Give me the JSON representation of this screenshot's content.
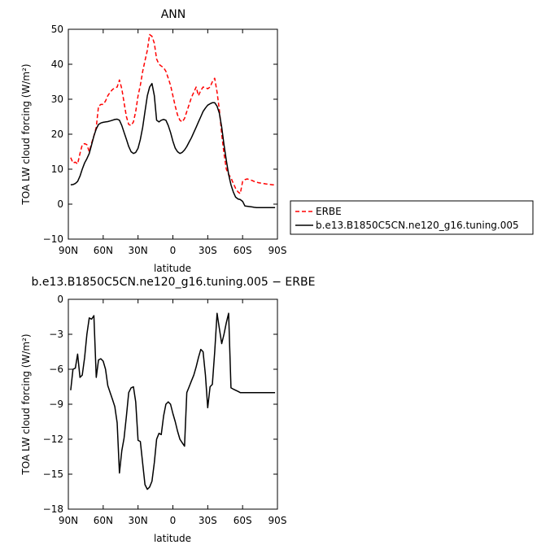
{
  "chart_data": [
    {
      "type": "line",
      "title": "ANN",
      "xlabel": "latitude",
      "ylabel": "TOA LW cloud forcing (W/m²)",
      "x_ticks": [
        {
          "v": 90,
          "label": "90N"
        },
        {
          "v": 60,
          "label": "60N"
        },
        {
          "v": 30,
          "label": "30N"
        },
        {
          "v": 0,
          "label": "0"
        },
        {
          "v": -30,
          "label": "30S"
        },
        {
          "v": -60,
          "label": "60S"
        },
        {
          "v": -90,
          "label": "90S"
        }
      ],
      "xlim": [
        90,
        -90
      ],
      "ylim": [
        -10,
        50
      ],
      "y_ticks": [
        -10,
        0,
        10,
        20,
        30,
        40,
        50
      ],
      "legend_placement": "right",
      "series": [
        {
          "name": "ERBE",
          "color": "#ff0000",
          "dash": "dashed",
          "x": [
            88,
            86,
            84,
            82,
            80,
            78,
            76,
            74,
            72,
            70,
            68,
            66,
            64,
            62,
            60,
            58,
            56,
            54,
            52,
            50,
            48,
            46,
            44,
            42,
            40,
            38,
            36,
            34,
            32,
            30,
            28,
            26,
            24,
            22,
            20,
            18,
            16,
            14,
            12,
            10,
            8,
            6,
            4,
            2,
            0,
            -2,
            -4,
            -6,
            -8,
            -10,
            -12,
            -14,
            -16,
            -18,
            -20,
            -22,
            -24,
            -26,
            -28,
            -30,
            -32,
            -34,
            -36,
            -38,
            -40,
            -42,
            -44,
            -46,
            -48,
            -50,
            -52,
            -54,
            -56,
            -58,
            -60,
            -62,
            -64,
            -66,
            -68,
            -70,
            -72,
            -74,
            -76,
            -78,
            -80,
            -82,
            -84,
            -86,
            -88
          ],
          "y": [
            13.3,
            11.8,
            12.0,
            11.5,
            14.5,
            17.0,
            17.3,
            17.0,
            15.0,
            17.5,
            19.5,
            22.0,
            28.0,
            28.5,
            28.5,
            29.5,
            31.0,
            32.0,
            32.8,
            33.2,
            33.5,
            35.5,
            33.0,
            29.0,
            25.0,
            22.8,
            22.5,
            23.5,
            26.5,
            31.0,
            34.0,
            38.0,
            41.0,
            44.0,
            48.5,
            48.0,
            46.0,
            41.5,
            40.0,
            39.5,
            39.0,
            38.0,
            36.0,
            34.0,
            31.0,
            28.0,
            25.5,
            24.0,
            23.5,
            24.5,
            26.5,
            28.5,
            30.5,
            32.0,
            33.5,
            31.0,
            32.5,
            33.5,
            33.3,
            33.0,
            33.5,
            35.0,
            36.0,
            32.0,
            27.0,
            20.0,
            14.5,
            10.0,
            8.5,
            7.5,
            6.0,
            4.5,
            3.5,
            3.0,
            6.5,
            7.0,
            7.2,
            7.0,
            6.8,
            6.5,
            6.3,
            6.1,
            6.0,
            5.9,
            5.8,
            5.7,
            5.6,
            5.5,
            5.5
          ]
        },
        {
          "name": "b.e13.B1850C5CN.ne120_g16.tuning.005",
          "color": "#000000",
          "dash": "solid",
          "x": [
            88,
            86,
            84,
            82,
            80,
            78,
            76,
            74,
            72,
            70,
            68,
            66,
            64,
            62,
            60,
            58,
            56,
            54,
            52,
            50,
            48,
            46,
            44,
            42,
            40,
            38,
            36,
            34,
            32,
            30,
            28,
            26,
            24,
            22,
            20,
            18,
            16,
            14,
            12,
            10,
            8,
            6,
            4,
            2,
            0,
            -2,
            -4,
            -6,
            -8,
            -10,
            -12,
            -14,
            -16,
            -18,
            -20,
            -22,
            -24,
            -26,
            -28,
            -30,
            -32,
            -34,
            -36,
            -38,
            -40,
            -42,
            -44,
            -46,
            -48,
            -50,
            -52,
            -54,
            -56,
            -58,
            -60,
            -62,
            -64,
            -66,
            -68,
            -70,
            -72,
            -74,
            -76,
            -78,
            -80,
            -82,
            -84,
            -86,
            -88
          ],
          "y": [
            5.5,
            5.6,
            5.9,
            6.5,
            8.0,
            10.0,
            11.8,
            13.0,
            14.5,
            17.0,
            19.5,
            21.5,
            22.8,
            23.2,
            23.4,
            23.5,
            23.6,
            23.8,
            24.0,
            24.2,
            24.3,
            24.0,
            22.5,
            20.5,
            18.5,
            16.5,
            15.0,
            14.5,
            14.8,
            16.0,
            18.5,
            22.0,
            26.5,
            31.0,
            33.5,
            34.5,
            31.0,
            24.0,
            23.5,
            24.0,
            24.2,
            24.0,
            22.5,
            20.5,
            18.0,
            16.0,
            15.0,
            14.5,
            14.8,
            15.5,
            16.5,
            17.8,
            19.0,
            20.5,
            22.0,
            23.5,
            25.0,
            26.5,
            27.5,
            28.3,
            28.7,
            29.0,
            29.0,
            28.0,
            26.0,
            22.0,
            17.0,
            12.5,
            8.5,
            5.5,
            3.5,
            2.0,
            1.5,
            1.3,
            0.8,
            -0.5,
            -0.6,
            -0.7,
            -0.8,
            -0.9,
            -1.0,
            -1.0,
            -1.0,
            -1.0,
            -1.0,
            -1.0,
            -1.0,
            -1.0,
            -1.0
          ]
        }
      ]
    },
    {
      "type": "line",
      "title": "b.e13.B1850C5CN.ne120_g16.tuning.005 − ERBE",
      "xlabel": "latitude",
      "ylabel": "TOA LW cloud forcing (W/m²)",
      "x_ticks": [
        {
          "v": 90,
          "label": "90N"
        },
        {
          "v": 60,
          "label": "60N"
        },
        {
          "v": 30,
          "label": "30N"
        },
        {
          "v": 0,
          "label": "0"
        },
        {
          "v": -30,
          "label": "30S"
        },
        {
          "v": -60,
          "label": "60S"
        },
        {
          "v": -90,
          "label": "90S"
        }
      ],
      "xlim": [
        90,
        -90
      ],
      "ylim": [
        -18,
        0
      ],
      "y_ticks": [
        -18,
        -15,
        -12,
        -9,
        -6,
        -3,
        0
      ],
      "series": [
        {
          "name": "",
          "color": "#000000",
          "dash": "solid",
          "x": [
            88,
            86,
            84,
            82,
            80,
            78,
            76,
            74,
            72,
            70,
            68,
            66,
            64,
            62,
            60,
            58,
            56,
            54,
            52,
            50,
            48,
            46,
            44,
            42,
            40,
            38,
            36,
            34,
            32,
            30,
            28,
            26,
            24,
            22,
            20,
            18,
            16,
            14,
            12,
            10,
            8,
            6,
            4,
            2,
            0,
            -2,
            -4,
            -6,
            -8,
            -10,
            -12,
            -14,
            -16,
            -18,
            -20,
            -22,
            -24,
            -26,
            -28,
            -30,
            -32,
            -34,
            -36,
            -38,
            -40,
            -42,
            -44,
            -46,
            -48,
            -50,
            -52,
            -54,
            -56,
            -58,
            -60,
            -62,
            -64,
            -66,
            -68,
            -70,
            -72,
            -74,
            -76,
            -78,
            -80,
            -82,
            -84,
            -86,
            -88
          ],
          "y": [
            -7.8,
            -6.0,
            -5.9,
            -4.7,
            -6.7,
            -6.5,
            -5.0,
            -3.0,
            -1.6,
            -1.7,
            -1.4,
            -6.7,
            -5.2,
            -5.1,
            -5.3,
            -6.0,
            -7.4,
            -8.0,
            -8.6,
            -9.2,
            -10.6,
            -14.9,
            -13.0,
            -11.9,
            -10.0,
            -8.0,
            -7.6,
            -7.5,
            -8.8,
            -12.1,
            -12.2,
            -14.1,
            -15.9,
            -16.3,
            -16.1,
            -15.6,
            -14.0,
            -12.0,
            -11.5,
            -11.6,
            -10.0,
            -9.0,
            -8.8,
            -9.0,
            -9.8,
            -10.5,
            -11.3,
            -12.0,
            -12.3,
            -12.6,
            -8.0,
            -7.5,
            -7.0,
            -6.5,
            -5.8,
            -5.0,
            -4.3,
            -4.5,
            -6.5,
            -9.3,
            -7.5,
            -7.3,
            -4.5,
            -1.2,
            -2.5,
            -3.8,
            -3.0,
            -2.0,
            -1.2,
            -7.6,
            -7.7,
            -7.8,
            -7.9,
            -8.0,
            -8.0,
            -8.0,
            -8.0,
            -8.0,
            -8.0,
            -8.0,
            -8.0,
            -8.0,
            -8.0,
            -8.0,
            -8.0,
            -8.0,
            -8.0,
            -8.0,
            -8.0
          ]
        }
      ]
    }
  ]
}
